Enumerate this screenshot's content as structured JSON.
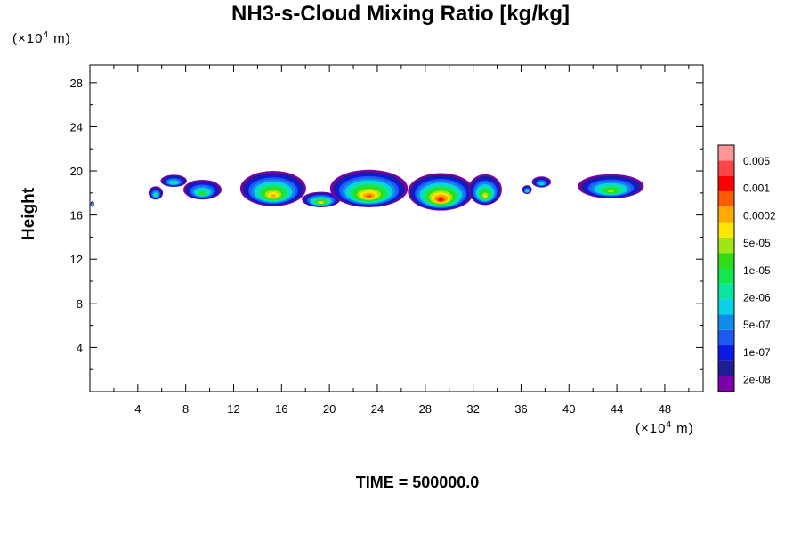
{
  "title": "NH3-s-Cloud Mixing Ratio [kg/kg]",
  "y_unit": {
    "prefix": "(×10",
    "exp": "4",
    "suffix": " m)"
  },
  "x_unit": {
    "prefix": "(×10",
    "exp": "4",
    "suffix": " m)"
  },
  "time_label": "TIME = 500000.0",
  "chart_data": {
    "type": "heatmap",
    "title": "NH3-s-Cloud Mixing Ratio [kg/kg]",
    "xlabel": "",
    "ylabel": "Height",
    "xlim": [
      0,
      51.2
    ],
    "ylim": [
      0,
      29.6
    ],
    "x_ticks": [
      4,
      8,
      12,
      16,
      20,
      24,
      28,
      32,
      36,
      40,
      44,
      48
    ],
    "y_ticks": [
      4,
      8,
      12,
      16,
      20,
      24,
      28
    ],
    "colorbar": {
      "labels": [
        "0.005",
        "0.001",
        "0.0002",
        "5e-05",
        "1e-05",
        "2e-06",
        "5e-07",
        "1e-07",
        "2e-08"
      ],
      "colors": [
        "#7a00a8",
        "#1e1e96",
        "#0a19e6",
        "#1e5af0",
        "#0f8ceb",
        "#08d2e6",
        "#0ae6a0",
        "#14e650",
        "#32dc14",
        "#a0e614",
        "#ffe600",
        "#ffaa00",
        "#ff5a00",
        "#ff0000",
        "#ff4646",
        "#ff9696"
      ]
    },
    "clouds": [
      {
        "cx": 0.2,
        "cy": 17.0,
        "w": 0.3,
        "h": 0.5,
        "max_level": 8
      },
      {
        "cx": 7.0,
        "cy": 19.1,
        "w": 2.2,
        "h": 1.1,
        "max_level": 7
      },
      {
        "cx": 9.4,
        "cy": 18.3,
        "w": 3.2,
        "h": 1.8,
        "max_level": 8
      },
      {
        "cx": 5.5,
        "cy": 18.0,
        "w": 1.2,
        "h": 1.2,
        "max_level": 7
      },
      {
        "cx": 15.3,
        "cy": 18.4,
        "w": 5.5,
        "h": 3.2,
        "max_level": 11
      },
      {
        "cx": 19.3,
        "cy": 17.4,
        "w": 3.2,
        "h": 1.4,
        "max_level": 10
      },
      {
        "cx": 23.3,
        "cy": 18.4,
        "w": 6.5,
        "h": 3.4,
        "max_level": 12
      },
      {
        "cx": 29.3,
        "cy": 18.1,
        "w": 5.5,
        "h": 3.4,
        "max_level": 13
      },
      {
        "cx": 33.0,
        "cy": 18.3,
        "w": 2.8,
        "h": 2.8,
        "max_level": 10
      },
      {
        "cx": 37.7,
        "cy": 19.0,
        "w": 1.6,
        "h": 1.0,
        "max_level": 6
      },
      {
        "cx": 36.5,
        "cy": 18.3,
        "w": 0.8,
        "h": 0.8,
        "max_level": 7
      },
      {
        "cx": 43.5,
        "cy": 18.6,
        "w": 5.5,
        "h": 2.2,
        "max_level": 9
      }
    ]
  }
}
